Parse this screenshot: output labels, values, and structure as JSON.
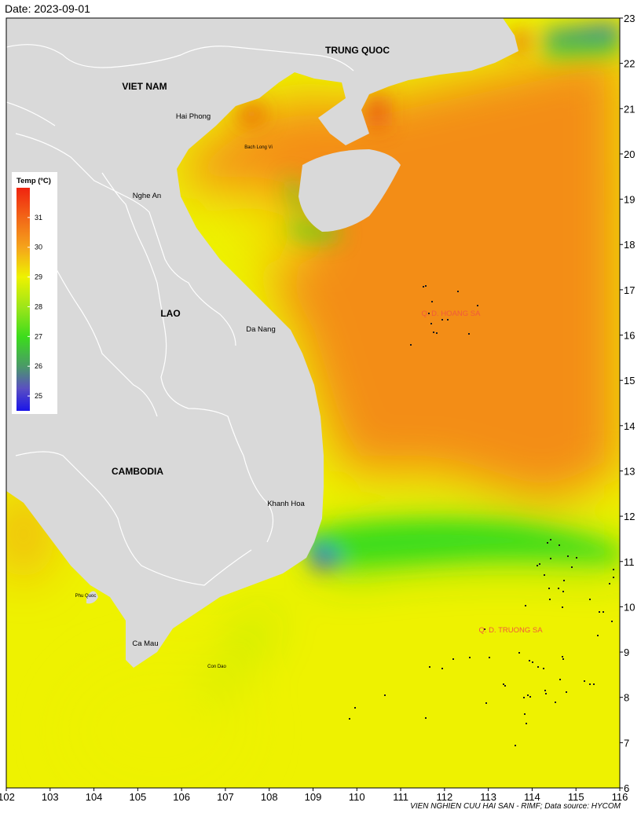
{
  "date_label": "Date: 2023-09-01",
  "credit": "VIEN NGHIEN CUU HAI SAN - RIMF; Data source: HYCOM",
  "colors": {
    "land": "#d9d9d9",
    "border": "#ffffff",
    "ocean_base": "#eef200",
    "warm": "#f38d17",
    "hot": "#e83c14",
    "cool": "#3bdc1c",
    "cold": "#3535d8",
    "archipelago": "#f25a3c"
  },
  "map": {
    "lon_range": [
      102,
      116
    ],
    "lat_range": [
      6,
      23
    ],
    "lon_ticks": [
      "102",
      "103",
      "104",
      "105",
      "106",
      "107",
      "108",
      "109",
      "110",
      "111",
      "112",
      "113",
      "114",
      "115",
      "116"
    ],
    "lat_ticks": [
      "6",
      "7",
      "8",
      "9",
      "10",
      "11",
      "12",
      "13",
      "14",
      "15",
      "16",
      "17",
      "18",
      "19",
      "20",
      "21",
      "22",
      "23"
    ],
    "countries": {
      "china": "TRUNG QUOC",
      "vietnam": "VIET NAM",
      "laos": "LAO",
      "cambodia": "CAMBODIA"
    },
    "places": {
      "hai_phong": "Hai Phong",
      "bach_long_vi": "Bach Long Vi",
      "nghe_an": "Nghe An",
      "da_nang": "Da Nang",
      "khanh_hoa": "Khanh Hoa",
      "phu_quoc": "Phu Quoc",
      "ca_mau": "Ca Mau",
      "con_dao": "Con Dao"
    },
    "archipelagos": {
      "hoang_sa": "Q. D. HOANG SA",
      "truong_sa": "Q. D. TRUONG SA"
    }
  },
  "legend": {
    "title": "Temp (ºC)",
    "ticks": [
      "31",
      "30",
      "29",
      "28",
      "27",
      "26",
      "25"
    ],
    "range": [
      24.5,
      32
    ]
  }
}
